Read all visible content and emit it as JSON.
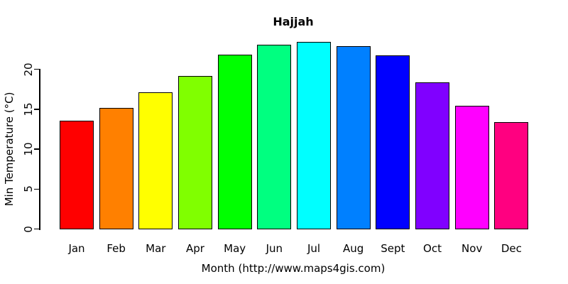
{
  "chart_data": {
    "type": "bar",
    "title": "Hajjah",
    "xlabel": "Month (http://www.maps4gis.com)",
    "ylabel": "Min Temperature (°C)",
    "categories": [
      "Jan",
      "Feb",
      "Mar",
      "Apr",
      "May",
      "Jun",
      "Jul",
      "Aug",
      "Sept",
      "Oct",
      "Nov",
      "Dec"
    ],
    "values": [
      13.6,
      15.2,
      17.1,
      19.2,
      21.8,
      23.1,
      23.4,
      22.9,
      21.7,
      18.4,
      15.4,
      13.4
    ],
    "bar_colors": [
      "#FF0000",
      "#FF8000",
      "#FFFF00",
      "#80FF00",
      "#00FF00",
      "#00FF80",
      "#00FFFF",
      "#0080FF",
      "#0000FF",
      "#8000FF",
      "#FF00FF",
      "#FF0080"
    ],
    "bar_border_color": "#000000",
    "yticks": [
      0,
      5,
      10,
      15,
      20
    ],
    "ylim": [
      0,
      23.4
    ],
    "grid": false,
    "legend": "none",
    "background": "#FFFFFF",
    "axis_color": "#000000"
  }
}
